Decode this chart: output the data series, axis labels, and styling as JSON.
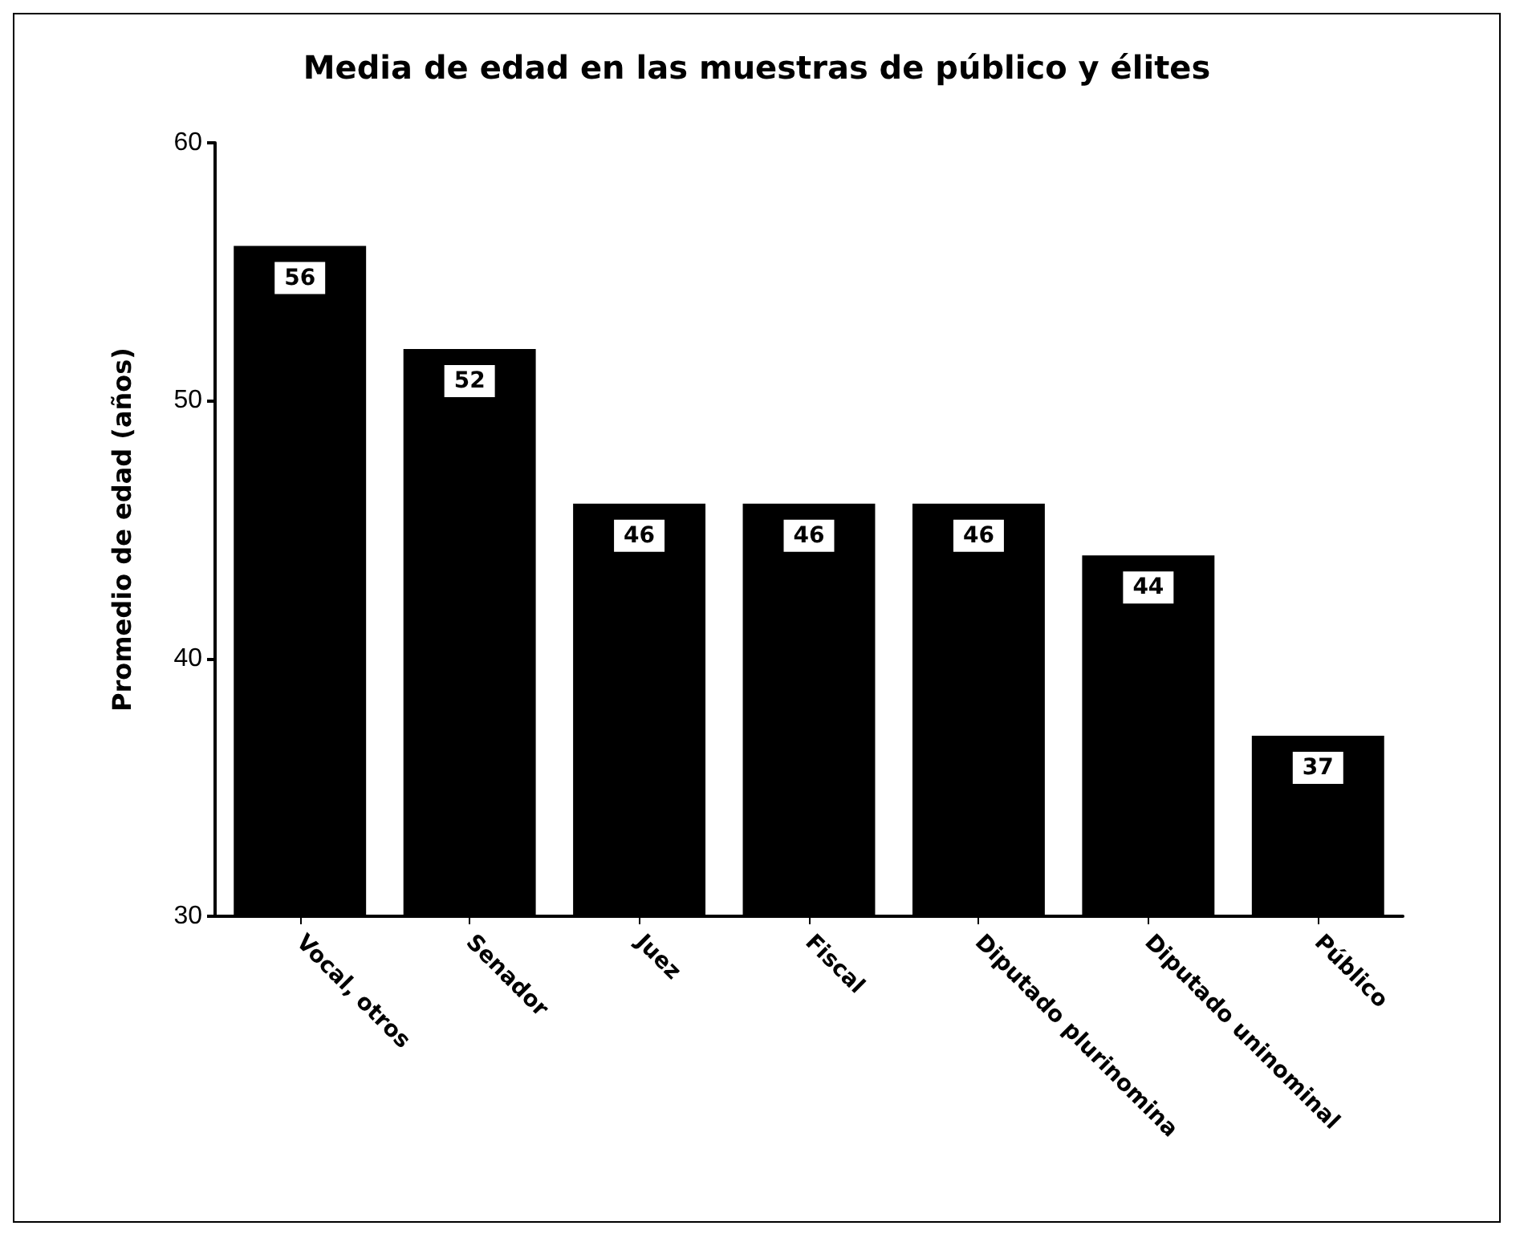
{
  "chart_data": {
    "type": "bar",
    "title": "Media de edad en las muestras de público y élites",
    "ylabel": "Promedio de edad (años)",
    "categories": [
      "Vocal, otros",
      "Senador",
      "Juez",
      "Fiscal",
      "Diputado plurinomina",
      "Diputado uninominal",
      "Público"
    ],
    "values": [
      56,
      52,
      46,
      46,
      46,
      44,
      37
    ],
    "color": "#000000",
    "ylim": [
      30,
      60
    ],
    "yticks": [
      30,
      40,
      50,
      60
    ],
    "grid": false,
    "data_labels": true
  }
}
